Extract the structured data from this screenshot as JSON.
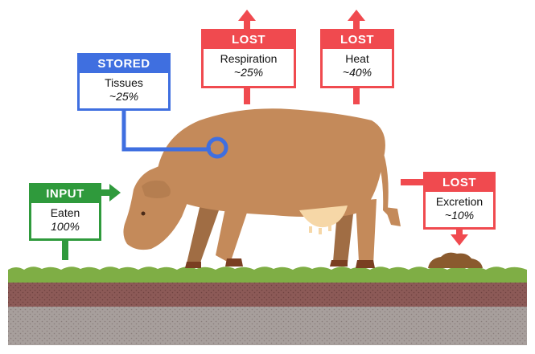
{
  "colors": {
    "lost": "#f04a4f",
    "stored": "#3f6fe0",
    "input": "#2f9a3c",
    "cow": "#c48a5a",
    "grass": "#7fae45",
    "soil_top": "#8c5a57",
    "soil_bottom": "#a79f9c"
  },
  "boxes": {
    "stored": {
      "header": "STORED",
      "label": "Tissues",
      "value": "~25%"
    },
    "respiration": {
      "header": "LOST",
      "label": "Respiration",
      "value": "~25%"
    },
    "heat": {
      "header": "LOST",
      "label": "Heat",
      "value": "~40%"
    },
    "input": {
      "header": "INPUT",
      "label": "Eaten",
      "value": "100%"
    },
    "excretion": {
      "header": "LOST",
      "label": "Excretion",
      "value": "~10%"
    }
  },
  "icons": [
    "cow-illustration",
    "dung-pile",
    "arrow-up-icon",
    "arrow-right-icon",
    "arrow-down-icon",
    "connector-ring-icon"
  ]
}
